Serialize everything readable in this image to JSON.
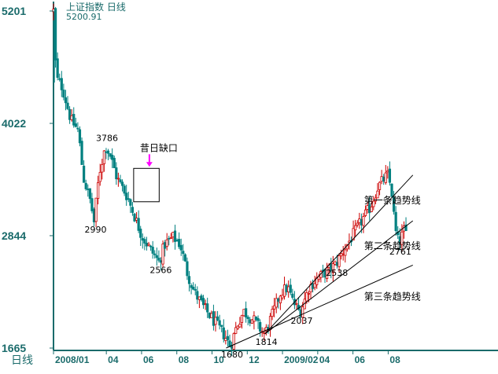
{
  "chart_data": {
    "type": "candlestick",
    "title": "上证指数 日线",
    "subtitle_value": "5200.91",
    "period_label": "日线",
    "y_ticks": [
      "5201",
      "4022",
      "2844",
      "1665"
    ],
    "ylim": [
      1665,
      5201
    ],
    "x_ticks": [
      "2008/01",
      "04",
      "06",
      "08",
      "10",
      "12",
      "2009/02",
      "04",
      "06",
      "08"
    ],
    "x_tick_months": [
      0,
      3,
      5,
      7,
      9,
      11,
      13,
      15,
      17,
      19
    ],
    "xlim": [
      0,
      20.5
    ],
    "colors": {
      "axis": "#1a6b6b",
      "up": "#cc0000",
      "down": "#008080",
      "line": "#000000",
      "arrow": "#ff00ff"
    },
    "price_path": [
      [
        0.0,
        5201
      ],
      [
        0.15,
        4500
      ],
      [
        0.5,
        4400
      ],
      [
        1.0,
        4050
      ],
      [
        1.4,
        3950
      ],
      [
        1.7,
        3450
      ],
      [
        2.1,
        3200
      ],
      [
        2.3,
        2990
      ],
      [
        2.6,
        3500
      ],
      [
        2.95,
        3786
      ],
      [
        3.2,
        3700
      ],
      [
        3.6,
        3450
      ],
      [
        4.2,
        3250
      ],
      [
        4.6,
        3050
      ],
      [
        5.0,
        2850
      ],
      [
        5.5,
        2700
      ],
      [
        6.0,
        2566
      ],
      [
        6.3,
        2750
      ],
      [
        6.8,
        2830
      ],
      [
        7.2,
        2750
      ],
      [
        7.6,
        2450
      ],
      [
        8.0,
        2250
      ],
      [
        8.5,
        2100
      ],
      [
        8.9,
        2000
      ],
      [
        9.3,
        1900
      ],
      [
        9.7,
        1800
      ],
      [
        10.05,
        1680
      ],
      [
        10.4,
        1900
      ],
      [
        10.8,
        2050
      ],
      [
        11.4,
        1950
      ],
      [
        11.8,
        1850
      ],
      [
        12.0,
        1814
      ],
      [
        12.5,
        2050
      ],
      [
        12.9,
        2250
      ],
      [
        13.3,
        2300
      ],
      [
        13.6,
        2150
      ],
      [
        14.0,
        2037
      ],
      [
        14.5,
        2300
      ],
      [
        15.0,
        2400
      ],
      [
        15.6,
        2480
      ],
      [
        16.0,
        2538
      ],
      [
        16.5,
        2700
      ],
      [
        17.0,
        2850
      ],
      [
        17.5,
        3000
      ],
      [
        18.0,
        3150
      ],
      [
        18.4,
        3350
      ],
      [
        18.8,
        3450
      ],
      [
        19.0,
        3478
      ],
      [
        19.2,
        3300
      ],
      [
        19.4,
        2900
      ],
      [
        19.6,
        2761
      ],
      [
        19.9,
        2900
      ],
      [
        20.1,
        2850
      ]
    ],
    "annotations": [
      {
        "label": "3786",
        "x": 2.95,
        "y": 3786,
        "anchor": "above"
      },
      {
        "label": "2990",
        "x": 2.3,
        "y": 2990,
        "anchor": "below"
      },
      {
        "label": "2566",
        "x": 6.0,
        "y": 2566,
        "anchor": "below"
      },
      {
        "label": "1680",
        "x": 10.05,
        "y": 1680,
        "anchor": "below"
      },
      {
        "label": "1814",
        "x": 12.0,
        "y": 1814,
        "anchor": "below"
      },
      {
        "label": "2037",
        "x": 14.0,
        "y": 2037,
        "anchor": "below"
      },
      {
        "label": "2538",
        "x": 16.0,
        "y": 2538,
        "anchor": "below"
      },
      {
        "label": "2761",
        "x": 19.6,
        "y": 2761,
        "anchor": "below"
      }
    ],
    "gap_label": "昔日缺口",
    "gap_box": {
      "x0": 4.55,
      "x1": 6.0,
      "y0": 3200,
      "y1": 3550
    },
    "trendlines": [
      {
        "name": "第一条趋势线",
        "x0": 12.0,
        "y0": 1814,
        "x1": 20.4,
        "y1": 3480
      },
      {
        "name": "第二条趋势线",
        "x0": 12.0,
        "y0": 1814,
        "x1": 20.4,
        "y1": 3000
      },
      {
        "name": "第三条趋势线",
        "x0": 9.8,
        "y0": 1665,
        "x1": 20.4,
        "y1": 2535
      }
    ]
  }
}
